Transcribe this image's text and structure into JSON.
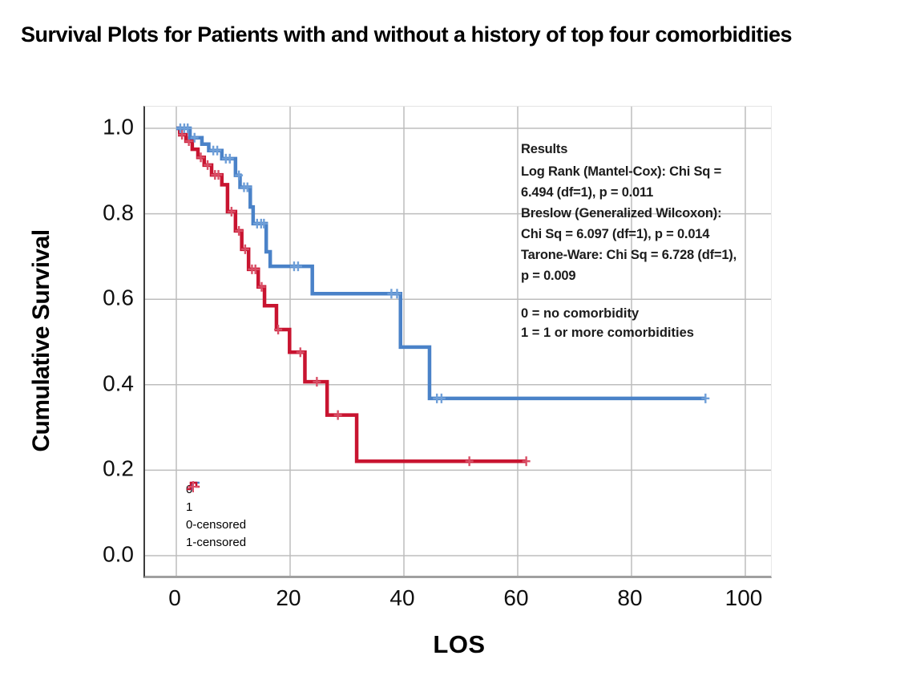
{
  "page": {
    "title": "Survival Plots for Patients with and without a history of top four comorbidities"
  },
  "results_box": {
    "heading": "Results",
    "body": "Log Rank (Mantel-Cox): Chi Sq =\n6.494 (df=1), p = 0.011\nBreslow (Generalized Wilcoxon):\nChi Sq = 6.097 (df=1), p = 0.014\nTarone-Ware: Chi Sq = 6.728 (df=1),\np = 0.009"
  },
  "group_note": {
    "line1": "0 = no comorbidity",
    "line2": "1 = 1 or more comorbidities"
  },
  "chart_data": {
    "type": "line",
    "subtype": "kaplan-meier-step",
    "title": "Survival Plots for Patients with and without a history of top four comorbidities",
    "xlabel": "LOS",
    "ylabel": "Cumulative Survival",
    "xlim": [
      0,
      100
    ],
    "ylim": [
      0.0,
      1.0
    ],
    "grid": true,
    "x_ticks": [
      {
        "label": "0",
        "value": 0
      },
      {
        "label": "20",
        "value": 20
      },
      {
        "label": "40",
        "value": 40
      },
      {
        "label": "60",
        "value": 60
      },
      {
        "label": "80",
        "value": 80
      },
      {
        "label": "100",
        "value": 100
      }
    ],
    "y_ticks": [
      {
        "label": "1.0",
        "value": 1.0
      },
      {
        "label": "0.8",
        "value": 0.8
      },
      {
        "label": "0.6",
        "value": 0.6
      },
      {
        "label": "0.4",
        "value": 0.4
      },
      {
        "label": "0.2",
        "value": 0.2
      },
      {
        "label": "0.0",
        "value": 0.0
      }
    ],
    "legend": {
      "position": "bottom-left-inside",
      "items": [
        {
          "label": "0",
          "icon": "step-up-icon",
          "color": "#4a82c8"
        },
        {
          "label": "1",
          "icon": "step-pulse-icon",
          "color": "#c81430"
        },
        {
          "label": "0-censored",
          "icon": "plus-icon",
          "color": "#7aa6dd"
        },
        {
          "label": "1-censored",
          "icon": "plus-icon",
          "color": "#dd4f68"
        }
      ]
    },
    "series": [
      {
        "name": "0",
        "meaning": "no comorbidity",
        "color": "#4a82c8",
        "censor_color": "#6f9fd8",
        "steps": [
          [
            0,
            1.0
          ],
          [
            2.4,
            0.978
          ],
          [
            4.5,
            0.963
          ],
          [
            5.7,
            0.948
          ],
          [
            8.0,
            0.929
          ],
          [
            10.4,
            0.89
          ],
          [
            11.2,
            0.862
          ],
          [
            13.0,
            0.816
          ],
          [
            13.5,
            0.777
          ],
          [
            15.8,
            0.711
          ],
          [
            16.5,
            0.677
          ],
          [
            23.9,
            0.613
          ],
          [
            39.4,
            0.488
          ],
          [
            44.5,
            0.368
          ]
        ],
        "end_x": 93,
        "censored": [
          [
            0.7,
            1.0
          ],
          [
            1.4,
            1.0
          ],
          [
            2.0,
            1.0
          ],
          [
            3.2,
            0.978
          ],
          [
            6.5,
            0.948
          ],
          [
            7.2,
            0.948
          ],
          [
            8.7,
            0.929
          ],
          [
            9.4,
            0.929
          ],
          [
            11.0,
            0.89
          ],
          [
            11.9,
            0.862
          ],
          [
            12.5,
            0.862
          ],
          [
            14.2,
            0.777
          ],
          [
            14.9,
            0.777
          ],
          [
            15.4,
            0.777
          ],
          [
            20.7,
            0.677
          ],
          [
            21.4,
            0.677
          ],
          [
            37.8,
            0.613
          ],
          [
            38.8,
            0.613
          ],
          [
            45.8,
            0.368
          ],
          [
            46.6,
            0.368
          ],
          [
            93,
            0.368
          ]
        ]
      },
      {
        "name": "1",
        "meaning": "1 or more comorbidities",
        "color": "#c81430",
        "censor_color": "#d94f66",
        "steps": [
          [
            0,
            1.0
          ],
          [
            0.6,
            0.985
          ],
          [
            1.7,
            0.97
          ],
          [
            2.8,
            0.951
          ],
          [
            3.8,
            0.932
          ],
          [
            4.9,
            0.914
          ],
          [
            6.2,
            0.891
          ],
          [
            8.0,
            0.868
          ],
          [
            9.0,
            0.805
          ],
          [
            10.4,
            0.76
          ],
          [
            11.5,
            0.717
          ],
          [
            12.7,
            0.67
          ],
          [
            14.4,
            0.629
          ],
          [
            15.5,
            0.585
          ],
          [
            17.6,
            0.529
          ],
          [
            19.9,
            0.476
          ],
          [
            22.6,
            0.407
          ],
          [
            26.5,
            0.329
          ],
          [
            31.7,
            0.221
          ]
        ],
        "end_x": 61.5,
        "censored": [
          [
            1.0,
            0.985
          ],
          [
            2.2,
            0.97
          ],
          [
            4.3,
            0.932
          ],
          [
            5.5,
            0.914
          ],
          [
            6.8,
            0.891
          ],
          [
            7.4,
            0.891
          ],
          [
            9.7,
            0.805
          ],
          [
            11.0,
            0.76
          ],
          [
            12.1,
            0.717
          ],
          [
            13.3,
            0.67
          ],
          [
            13.9,
            0.67
          ],
          [
            15.0,
            0.629
          ],
          [
            17.9,
            0.529
          ],
          [
            21.8,
            0.476
          ],
          [
            24.7,
            0.407
          ],
          [
            28.4,
            0.329
          ],
          [
            51.5,
            0.221
          ],
          [
            61.5,
            0.221
          ]
        ]
      }
    ]
  }
}
